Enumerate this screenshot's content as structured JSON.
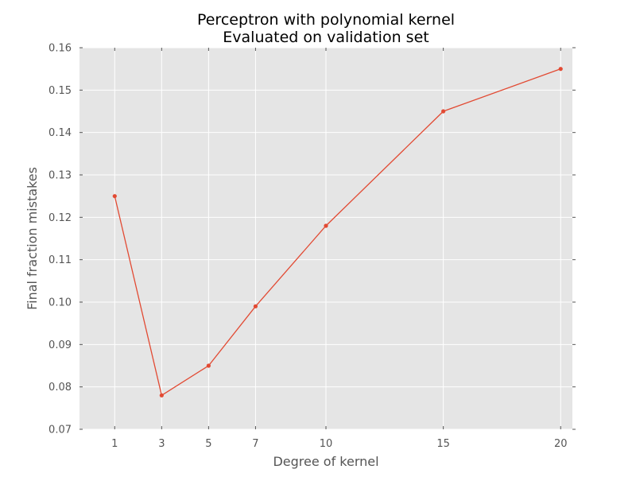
{
  "chart_data": {
    "type": "line",
    "title": "Perceptron with polynomial kernel",
    "subtitle": "Evaluated on validation set",
    "xlabel": "Degree of kernel",
    "ylabel": "Final fraction mistakes",
    "xlim": [
      -0.5,
      20.5
    ],
    "ylim": [
      0.07,
      0.16
    ],
    "x_ticks": [
      1,
      3,
      5,
      7,
      10,
      15,
      20
    ],
    "y_ticks": [
      "0.07",
      "0.08",
      "0.09",
      "0.10",
      "0.11",
      "0.12",
      "0.13",
      "0.14",
      "0.15",
      "0.16"
    ],
    "grid": true,
    "background": "#e5e5e5",
    "series": [
      {
        "color": "#e24a33",
        "x": [
          1,
          3,
          5,
          7,
          10,
          15,
          20
        ],
        "y": [
          0.125,
          0.078,
          0.085,
          0.099,
          0.118,
          0.145,
          0.155
        ]
      }
    ]
  }
}
